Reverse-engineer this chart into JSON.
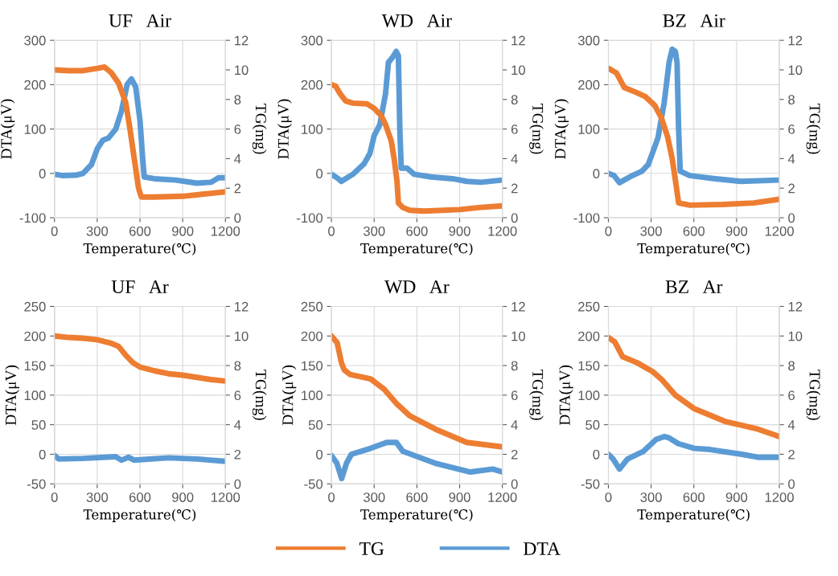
{
  "chart_data": [
    {
      "type": "line",
      "title": "UF   Air",
      "xlabel": "Temperature(℃)",
      "ylabel": "DTA(μV)",
      "y2label": "TG(mg)",
      "xlim": [
        0,
        1200
      ],
      "xticks": [
        0,
        300,
        600,
        900,
        1200
      ],
      "ylim": [
        -100,
        300
      ],
      "yticks": [
        -100,
        0,
        100,
        200,
        300
      ],
      "y2lim": [
        0,
        12
      ],
      "y2ticks": [
        0,
        2,
        4,
        6,
        8,
        10,
        12
      ],
      "grid": true,
      "legend": "bottom",
      "marker": "none",
      "line_style": "solid",
      "series": [
        {
          "name": "TG",
          "color": "#ed7d31",
          "axis": "y2",
          "x": [
            0,
            100,
            200,
            300,
            350,
            400,
            450,
            500,
            530,
            560,
            590,
            610,
            700,
            900,
            1000,
            1100,
            1200
          ],
          "values": [
            10.0,
            9.95,
            9.95,
            10.1,
            10.2,
            9.8,
            9.1,
            7.8,
            6.0,
            4.0,
            2.0,
            1.4,
            1.4,
            1.45,
            1.55,
            1.65,
            1.75
          ]
        },
        {
          "name": "DTA",
          "color": "#5b9bd5",
          "x": [
            0,
            60,
            150,
            200,
            260,
            300,
            340,
            380,
            430,
            470,
            510,
            540,
            570,
            600,
            620,
            630,
            700,
            850,
            1000,
            1100,
            1150,
            1200
          ],
          "values": [
            -2,
            -5,
            -4,
            0,
            20,
            55,
            75,
            80,
            100,
            140,
            200,
            213,
            195,
            120,
            30,
            -8,
            -12,
            -15,
            -22,
            -20,
            -10,
            -10
          ]
        }
      ]
    },
    {
      "type": "line",
      "title": "WD   Air",
      "xlabel": "Temperature(℃)",
      "ylabel": "DTA(μV)",
      "y2label": "TG(mg)",
      "xlim": [
        0,
        1200
      ],
      "xticks": [
        0,
        300,
        600,
        900,
        1200
      ],
      "ylim": [
        -100,
        300
      ],
      "yticks": [
        -100,
        0,
        100,
        200,
        300
      ],
      "y2lim": [
        0,
        12
      ],
      "y2ticks": [
        0,
        2,
        4,
        6,
        8,
        10,
        12
      ],
      "grid": true,
      "legend": "bottom",
      "marker": "none",
      "line_style": "solid",
      "series": [
        {
          "name": "TG",
          "color": "#ed7d31",
          "axis": "y2",
          "x": [
            0,
            30,
            60,
            100,
            150,
            250,
            300,
            350,
            380,
            420,
            440,
            460,
            470,
            500,
            550,
            650,
            900,
            1050,
            1200
          ],
          "values": [
            9.0,
            8.9,
            8.4,
            7.9,
            7.75,
            7.7,
            7.4,
            6.9,
            6.3,
            5.2,
            4.0,
            2.5,
            1.0,
            0.7,
            0.5,
            0.45,
            0.55,
            0.7,
            0.8
          ]
        },
        {
          "name": "DTA",
          "color": "#5b9bd5",
          "x": [
            0,
            40,
            70,
            150,
            230,
            270,
            300,
            340,
            380,
            400,
            430,
            455,
            470,
            480,
            490,
            530,
            580,
            700,
            850,
            950,
            1050,
            1200
          ],
          "values": [
            -2,
            -10,
            -18,
            -2,
            22,
            45,
            85,
            110,
            180,
            250,
            262,
            275,
            265,
            100,
            12,
            12,
            -2,
            -8,
            -12,
            -18,
            -20,
            -15
          ]
        }
      ]
    },
    {
      "type": "line",
      "title": "BZ   Air",
      "xlabel": "Temperature(℃)",
      "ylabel": "DTA(μV)",
      "y2label": "TG(mg)",
      "xlim": [
        0,
        1200
      ],
      "xticks": [
        0,
        300,
        600,
        900,
        1200
      ],
      "ylim": [
        -100,
        300
      ],
      "yticks": [
        -100,
        0,
        100,
        200,
        300
      ],
      "y2lim": [
        0,
        12
      ],
      "y2ticks": [
        0,
        2,
        4,
        6,
        8,
        10,
        12
      ],
      "grid": true,
      "legend": "bottom",
      "marker": "none",
      "line_style": "solid",
      "series": [
        {
          "name": "TG",
          "color": "#ed7d31",
          "axis": "y2",
          "x": [
            0,
            56,
            112,
            190,
            258,
            325,
            370,
            415,
            448,
            471,
            493,
            572,
            800,
            1020,
            1200
          ],
          "values": [
            10.1,
            9.8,
            8.8,
            8.5,
            8.2,
            7.6,
            6.8,
            5.5,
            4.0,
            2.5,
            1.0,
            0.85,
            0.9,
            1.0,
            1.25
          ]
        },
        {
          "name": "DTA",
          "color": "#5b9bd5",
          "x": [
            0,
            40,
            78,
            168,
            235,
            280,
            348,
            392,
            426,
            448,
            470,
            482,
            493,
            504,
            572,
            750,
            930,
            1200
          ],
          "values": [
            0,
            -5,
            -21,
            -5,
            5,
            20,
            80,
            160,
            250,
            280,
            275,
            250,
            100,
            5,
            -5,
            -12,
            -18,
            -15
          ]
        }
      ]
    },
    {
      "type": "line",
      "title": "UF   Ar",
      "xlabel": "Temperature(℃)",
      "ylabel": "DTA(μV)",
      "y2label": "TG(mg)",
      "xlim": [
        0,
        1200
      ],
      "xticks": [
        0,
        300,
        600,
        900,
        1200
      ],
      "ylim": [
        -50,
        250
      ],
      "yticks": [
        -50,
        0,
        50,
        100,
        150,
        200,
        250
      ],
      "y2lim": [
        0,
        12
      ],
      "y2ticks": [
        0,
        2,
        4,
        6,
        8,
        10,
        12
      ],
      "grid": true,
      "legend": "bottom",
      "marker": "none",
      "line_style": "solid",
      "series": [
        {
          "name": "TG",
          "color": "#ed7d31",
          "axis": "y2",
          "x": [
            0,
            100,
            200,
            300,
            400,
            450,
            500,
            550,
            600,
            700,
            800,
            900,
            1000,
            1100,
            1200
          ],
          "values": [
            10.0,
            9.9,
            9.85,
            9.75,
            9.5,
            9.3,
            8.7,
            8.2,
            7.9,
            7.65,
            7.45,
            7.35,
            7.2,
            7.05,
            6.95
          ]
        },
        {
          "name": "DTA",
          "color": "#5b9bd5",
          "x": [
            0,
            30,
            200,
            430,
            470,
            520,
            560,
            800,
            1000,
            1200
          ],
          "values": [
            -2,
            -8,
            -7,
            -4,
            -10,
            -5,
            -10,
            -6,
            -8,
            -12
          ]
        }
      ]
    },
    {
      "type": "line",
      "title": "WD   Ar",
      "xlabel": "Temperature(℃)",
      "ylabel": "DTA(μV)",
      "y2label": "TG(mg)",
      "xlim": [
        0,
        1200
      ],
      "xticks": [
        0,
        300,
        600,
        900,
        1200
      ],
      "ylim": [
        -50,
        250
      ],
      "yticks": [
        -50,
        0,
        50,
        100,
        150,
        200,
        250
      ],
      "y2lim": [
        0,
        12
      ],
      "y2ticks": [
        0,
        2,
        4,
        6,
        8,
        10,
        12
      ],
      "grid": true,
      "legend": "bottom",
      "marker": "none",
      "line_style": "solid",
      "series": [
        {
          "name": "TG",
          "color": "#ed7d31",
          "axis": "y2",
          "x": [
            0,
            40,
            70,
            90,
            130,
            275,
            370,
            460,
            550,
            730,
            950,
            1200
          ],
          "values": [
            10.0,
            9.55,
            8.2,
            7.7,
            7.4,
            7.1,
            6.4,
            5.4,
            4.6,
            3.7,
            2.8,
            2.5
          ]
        },
        {
          "name": "DTA",
          "color": "#5b9bd5",
          "x": [
            0,
            38,
            72,
            106,
            140,
            275,
            388,
            456,
            501,
            727,
            975,
            1133,
            1200
          ],
          "values": [
            -2,
            -15,
            -41,
            -15,
            0,
            10,
            20,
            20,
            5,
            -15,
            -30,
            -25,
            -30
          ]
        }
      ]
    },
    {
      "type": "line",
      "title": "BZ   Ar",
      "xlabel": "Temperature(℃)",
      "ylabel": "DTA(μV)",
      "y2label": "TG(mg)",
      "xlim": [
        0,
        1200
      ],
      "xticks": [
        0,
        300,
        600,
        900,
        1200
      ],
      "ylim": [
        -50,
        250
      ],
      "yticks": [
        -50,
        0,
        50,
        100,
        150,
        200,
        250
      ],
      "y2lim": [
        0,
        12
      ],
      "y2ticks": [
        0,
        2,
        4,
        6,
        8,
        10,
        12
      ],
      "grid": true,
      "legend": "bottom",
      "marker": "none",
      "line_style": "solid",
      "series": [
        {
          "name": "TG",
          "color": "#ed7d31",
          "axis": "y2",
          "x": [
            0,
            45,
            100,
            200,
            310,
            380,
            470,
            600,
            825,
            1050,
            1200
          ],
          "values": [
            9.9,
            9.6,
            8.6,
            8.2,
            7.6,
            7.0,
            6.0,
            5.1,
            4.2,
            3.7,
            3.2
          ]
        },
        {
          "name": "DTA",
          "color": "#5b9bd5",
          "x": [
            0,
            33,
            78,
            134,
            246,
            335,
            391,
            424,
            491,
            603,
            714,
            937,
            1049,
            1200
          ],
          "values": [
            0,
            -8,
            -25,
            -8,
            5,
            25,
            30,
            28,
            18,
            10,
            8,
            0,
            -5,
            -5
          ]
        }
      ]
    }
  ]
}
